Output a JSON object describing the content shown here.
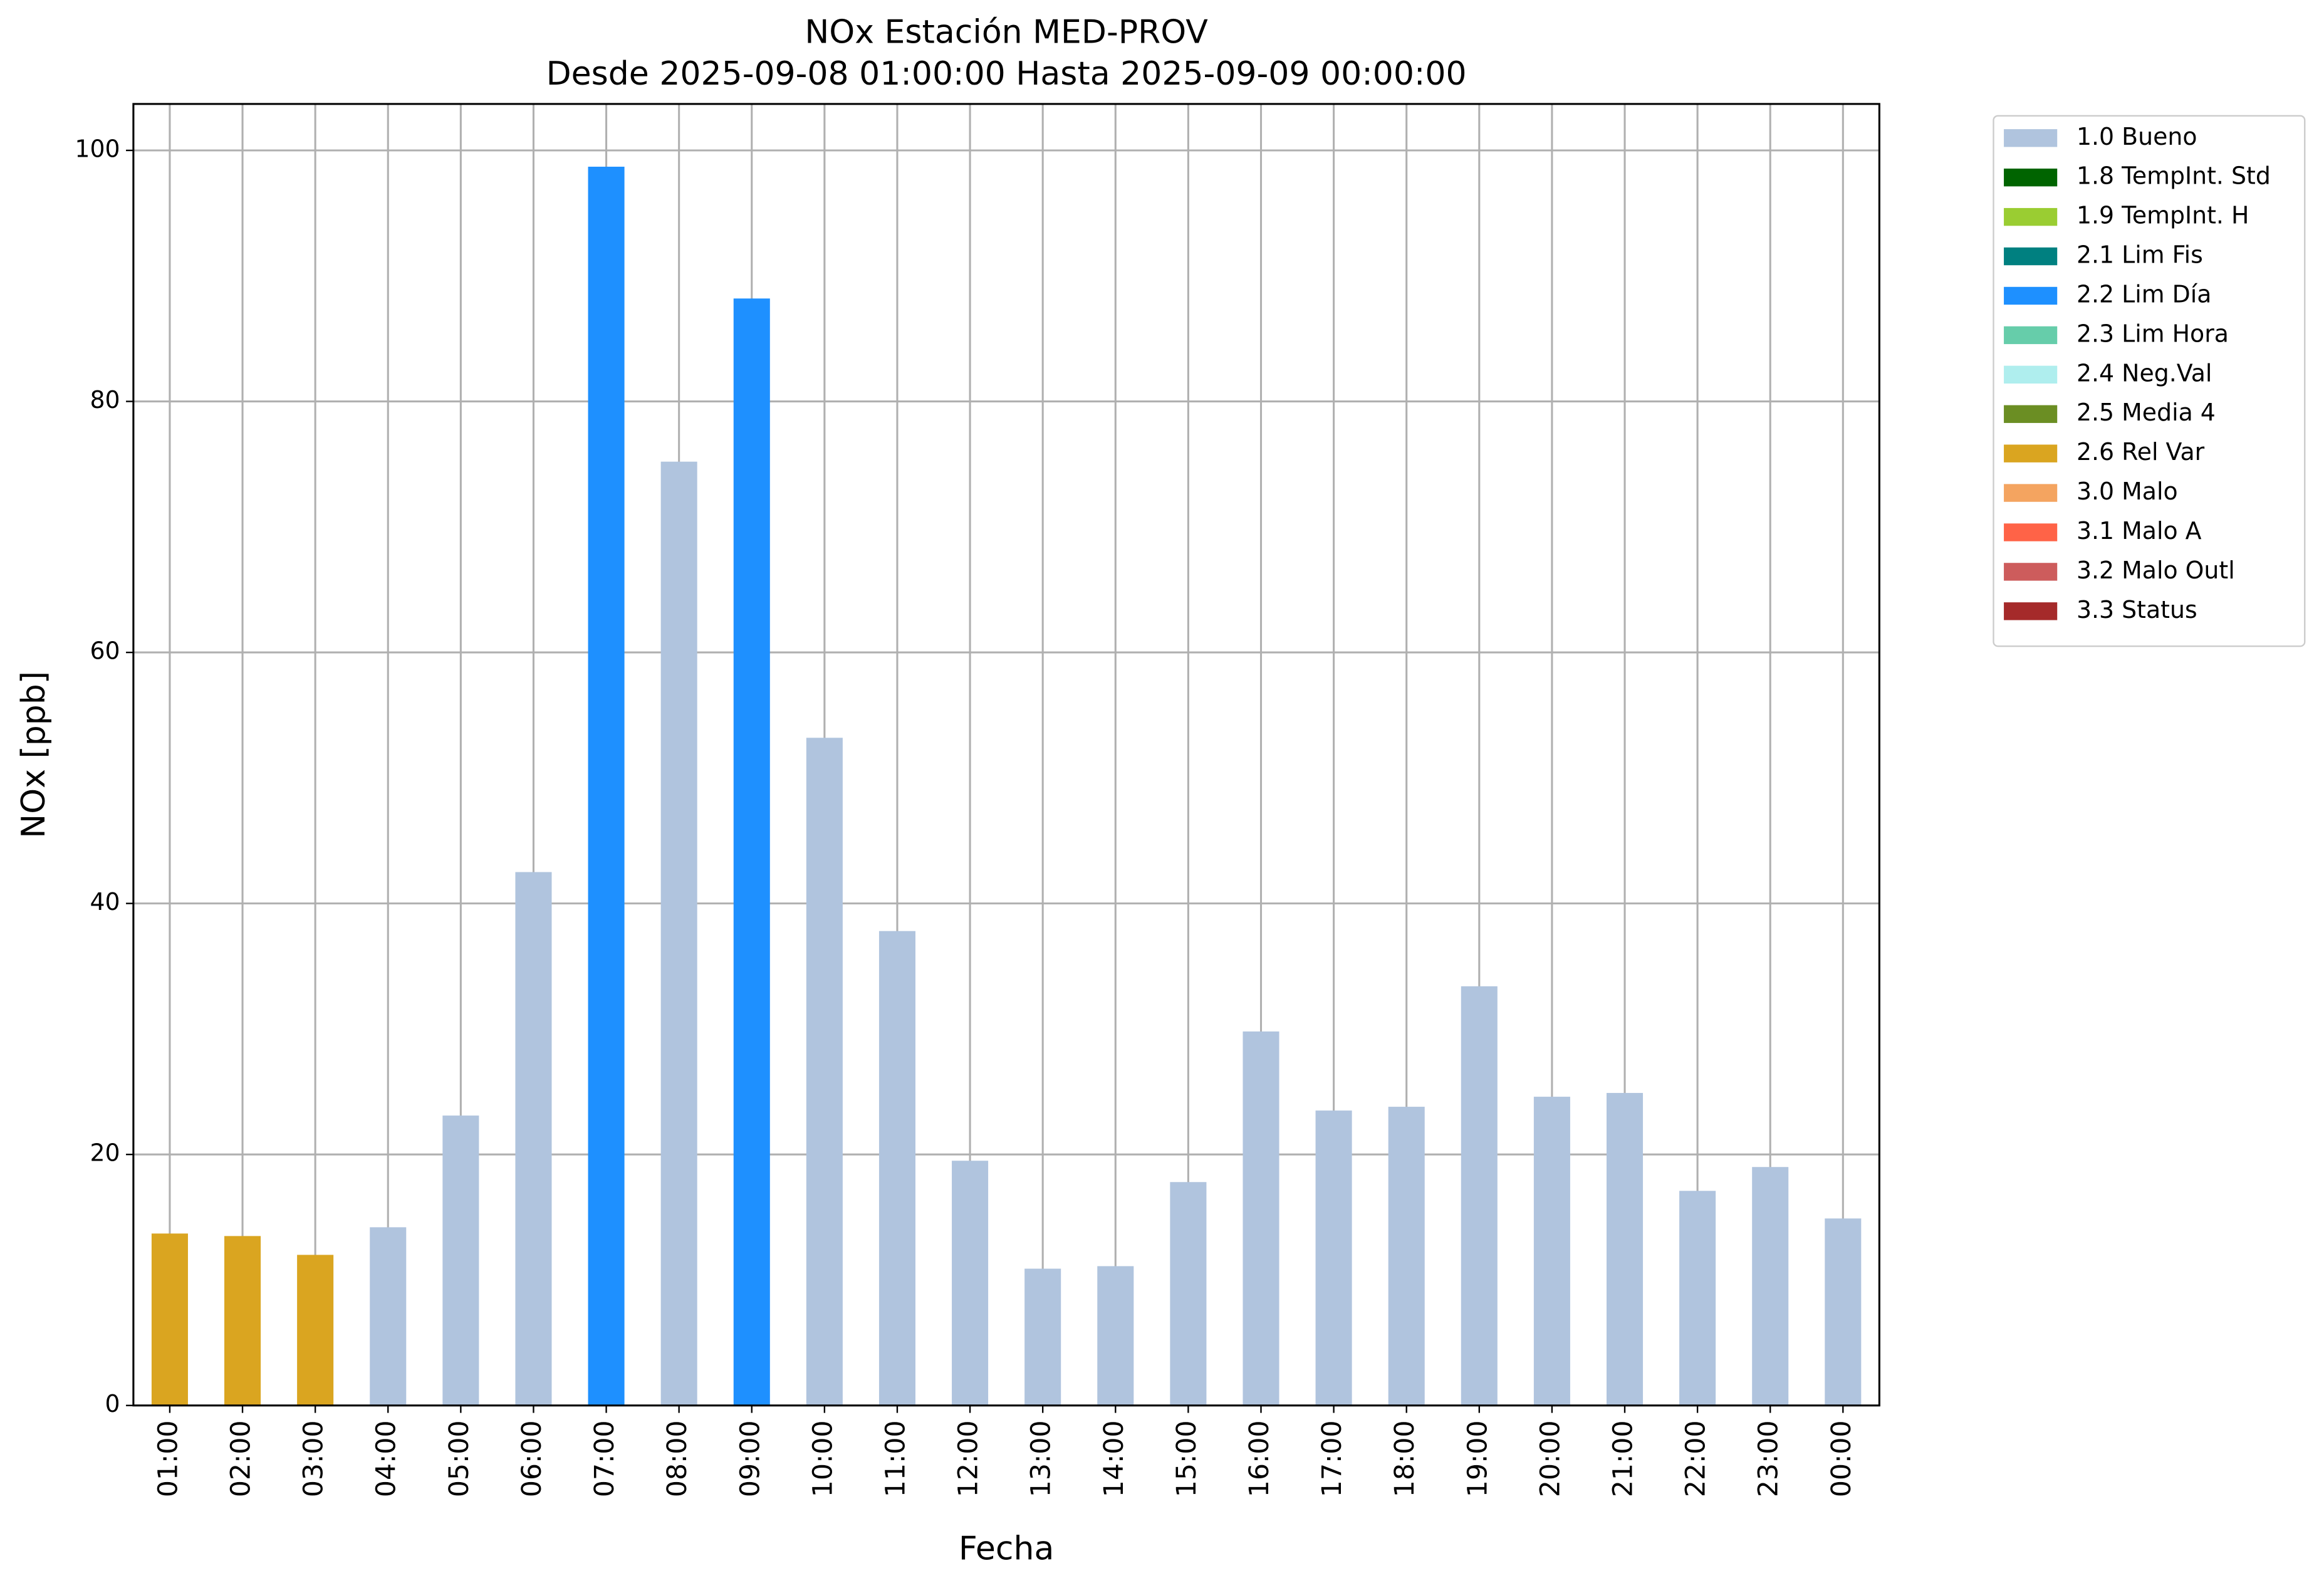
{
  "chart_data": {
    "type": "bar",
    "title": "NOx Estación MED-PROV",
    "subtitle": "Desde 2025-09-08 01:00:00 Hasta 2025-09-09 00:00:00",
    "x_label": "Fecha",
    "y_label": "NOx [ppb]",
    "categories": [
      "01:00",
      "02:00",
      "03:00",
      "04:00",
      "05:00",
      "06:00",
      "07:00",
      "08:00",
      "09:00",
      "10:00",
      "11:00",
      "12:00",
      "13:00",
      "14:00",
      "15:00",
      "16:00",
      "17:00",
      "18:00",
      "19:00",
      "20:00",
      "21:00",
      "22:00",
      "23:00",
      "00:00"
    ],
    "series": [
      {
        "name": "1.0 Bueno",
        "color": "#b0c4de",
        "values": [
          null,
          null,
          null,
          14.2,
          23.1,
          42.5,
          null,
          75.2,
          null,
          53.2,
          37.8,
          19.5,
          10.9,
          11.1,
          17.8,
          29.8,
          23.5,
          23.8,
          33.4,
          24.6,
          24.9,
          17.1,
          19.0,
          14.9
        ]
      },
      {
        "name": "1.8 TempInt. Std",
        "color": "#006400",
        "values": [
          null,
          null,
          null,
          null,
          null,
          null,
          null,
          null,
          null,
          null,
          null,
          null,
          null,
          null,
          null,
          null,
          null,
          null,
          null,
          null,
          null,
          null,
          null,
          null
        ]
      },
      {
        "name": "1.9 TempInt. H",
        "color": "#9acd32",
        "values": [
          null,
          null,
          null,
          null,
          null,
          null,
          null,
          null,
          null,
          null,
          null,
          null,
          null,
          null,
          null,
          null,
          null,
          null,
          null,
          null,
          null,
          null,
          null,
          null
        ]
      },
      {
        "name": "2.1 Lim Fis",
        "color": "#008080",
        "values": [
          null,
          null,
          null,
          null,
          null,
          null,
          null,
          null,
          null,
          null,
          null,
          null,
          null,
          null,
          null,
          null,
          null,
          null,
          null,
          null,
          null,
          null,
          null,
          null
        ]
      },
      {
        "name": "2.2 Lim Día",
        "color": "#1e90ff",
        "values": [
          null,
          null,
          null,
          null,
          null,
          null,
          98.7,
          null,
          88.2,
          null,
          null,
          null,
          null,
          null,
          null,
          null,
          null,
          null,
          null,
          null,
          null,
          null,
          null,
          null
        ]
      },
      {
        "name": "2.3 Lim Hora",
        "color": "#66cdaa",
        "values": [
          null,
          null,
          null,
          null,
          null,
          null,
          null,
          null,
          null,
          null,
          null,
          null,
          null,
          null,
          null,
          null,
          null,
          null,
          null,
          null,
          null,
          null,
          null,
          null
        ]
      },
      {
        "name": "2.4 Neg.Val",
        "color": "#afeeee",
        "values": [
          null,
          null,
          null,
          null,
          null,
          null,
          null,
          null,
          null,
          null,
          null,
          null,
          null,
          null,
          null,
          null,
          null,
          null,
          null,
          null,
          null,
          null,
          null,
          null
        ]
      },
      {
        "name": "2.5 Media 4",
        "color": "#6b8e23",
        "values": [
          null,
          null,
          null,
          null,
          null,
          null,
          null,
          null,
          null,
          null,
          null,
          null,
          null,
          null,
          null,
          null,
          null,
          null,
          null,
          null,
          null,
          null,
          null,
          null
        ]
      },
      {
        "name": "2.6 Rel Var",
        "color": "#daa520",
        "values": [
          13.7,
          13.5,
          12.0,
          null,
          null,
          null,
          null,
          null,
          null,
          null,
          null,
          null,
          null,
          null,
          null,
          null,
          null,
          null,
          null,
          null,
          null,
          null,
          null,
          null
        ]
      },
      {
        "name": "3.0 Malo",
        "color": "#f4a460",
        "values": [
          null,
          null,
          null,
          null,
          null,
          null,
          null,
          null,
          null,
          null,
          null,
          null,
          null,
          null,
          null,
          null,
          null,
          null,
          null,
          null,
          null,
          null,
          null,
          null
        ]
      },
      {
        "name": "3.1 Malo A",
        "color": "#ff6347",
        "values": [
          null,
          null,
          null,
          null,
          null,
          null,
          null,
          null,
          null,
          null,
          null,
          null,
          null,
          null,
          null,
          null,
          null,
          null,
          null,
          null,
          null,
          null,
          null,
          null
        ]
      },
      {
        "name": "3.2 Malo Outl",
        "color": "#cd5c5c",
        "values": [
          null,
          null,
          null,
          null,
          null,
          null,
          null,
          null,
          null,
          null,
          null,
          null,
          null,
          null,
          null,
          null,
          null,
          null,
          null,
          null,
          null,
          null,
          null,
          null
        ]
      },
      {
        "name": "3.3 Status",
        "color": "#a52a2a",
        "values": [
          null,
          null,
          null,
          null,
          null,
          null,
          null,
          null,
          null,
          null,
          null,
          null,
          null,
          null,
          null,
          null,
          null,
          null,
          null,
          null,
          null,
          null,
          null,
          null
        ]
      }
    ],
    "ylim": [
      0,
      103.7
    ],
    "yticks": [
      0,
      20,
      40,
      60,
      80,
      100
    ],
    "grid": true,
    "legend": "outside-upper-right"
  }
}
